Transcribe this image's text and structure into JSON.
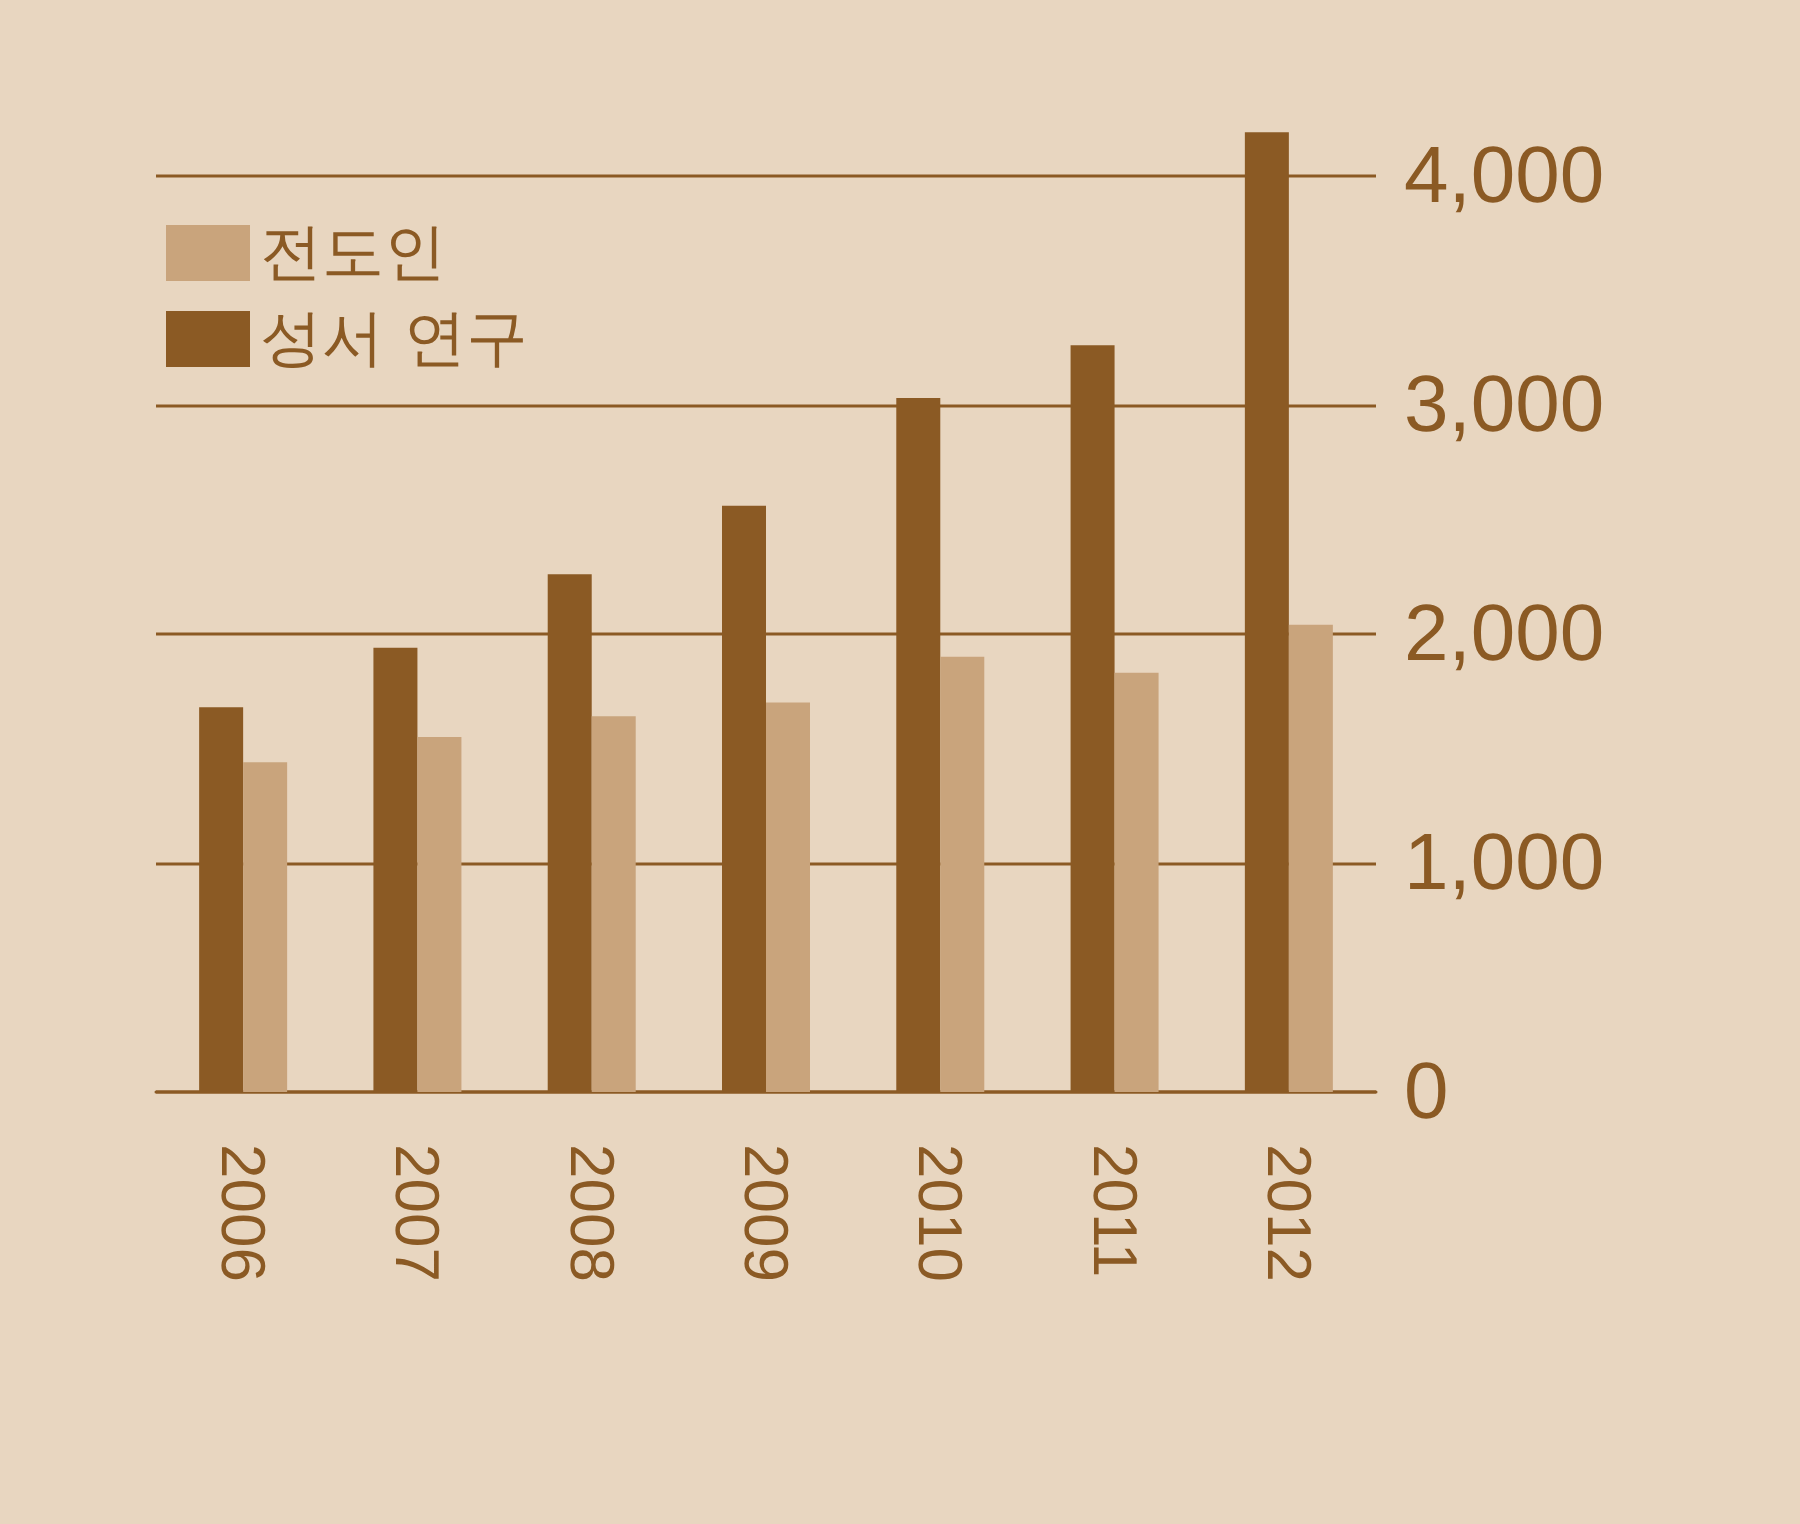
{
  "chart_data": {
    "type": "bar",
    "categories": [
      "2006",
      "2007",
      "2008",
      "2009",
      "2010",
      "2011",
      "2012"
    ],
    "series": [
      {
        "name": "성서 연구",
        "color": "#8b5a24",
        "values": [
          1680,
          1940,
          2260,
          2560,
          3030,
          3260,
          4190
        ]
      },
      {
        "name": "전도인",
        "color": "#c9a47c",
        "values": [
          1440,
          1550,
          1640,
          1700,
          1900,
          1830,
          2040
        ]
      }
    ],
    "ylim": [
      0,
      4200
    ],
    "yticks": [
      0,
      {
        "value": 1000,
        "label": "1,000"
      },
      {
        "value": 2000,
        "label": "2,000"
      },
      {
        "value": 3000,
        "label": "3,000"
      },
      {
        "value": 4000,
        "label": "4,000"
      }
    ],
    "grid": "y",
    "legend": "top left"
  }
}
